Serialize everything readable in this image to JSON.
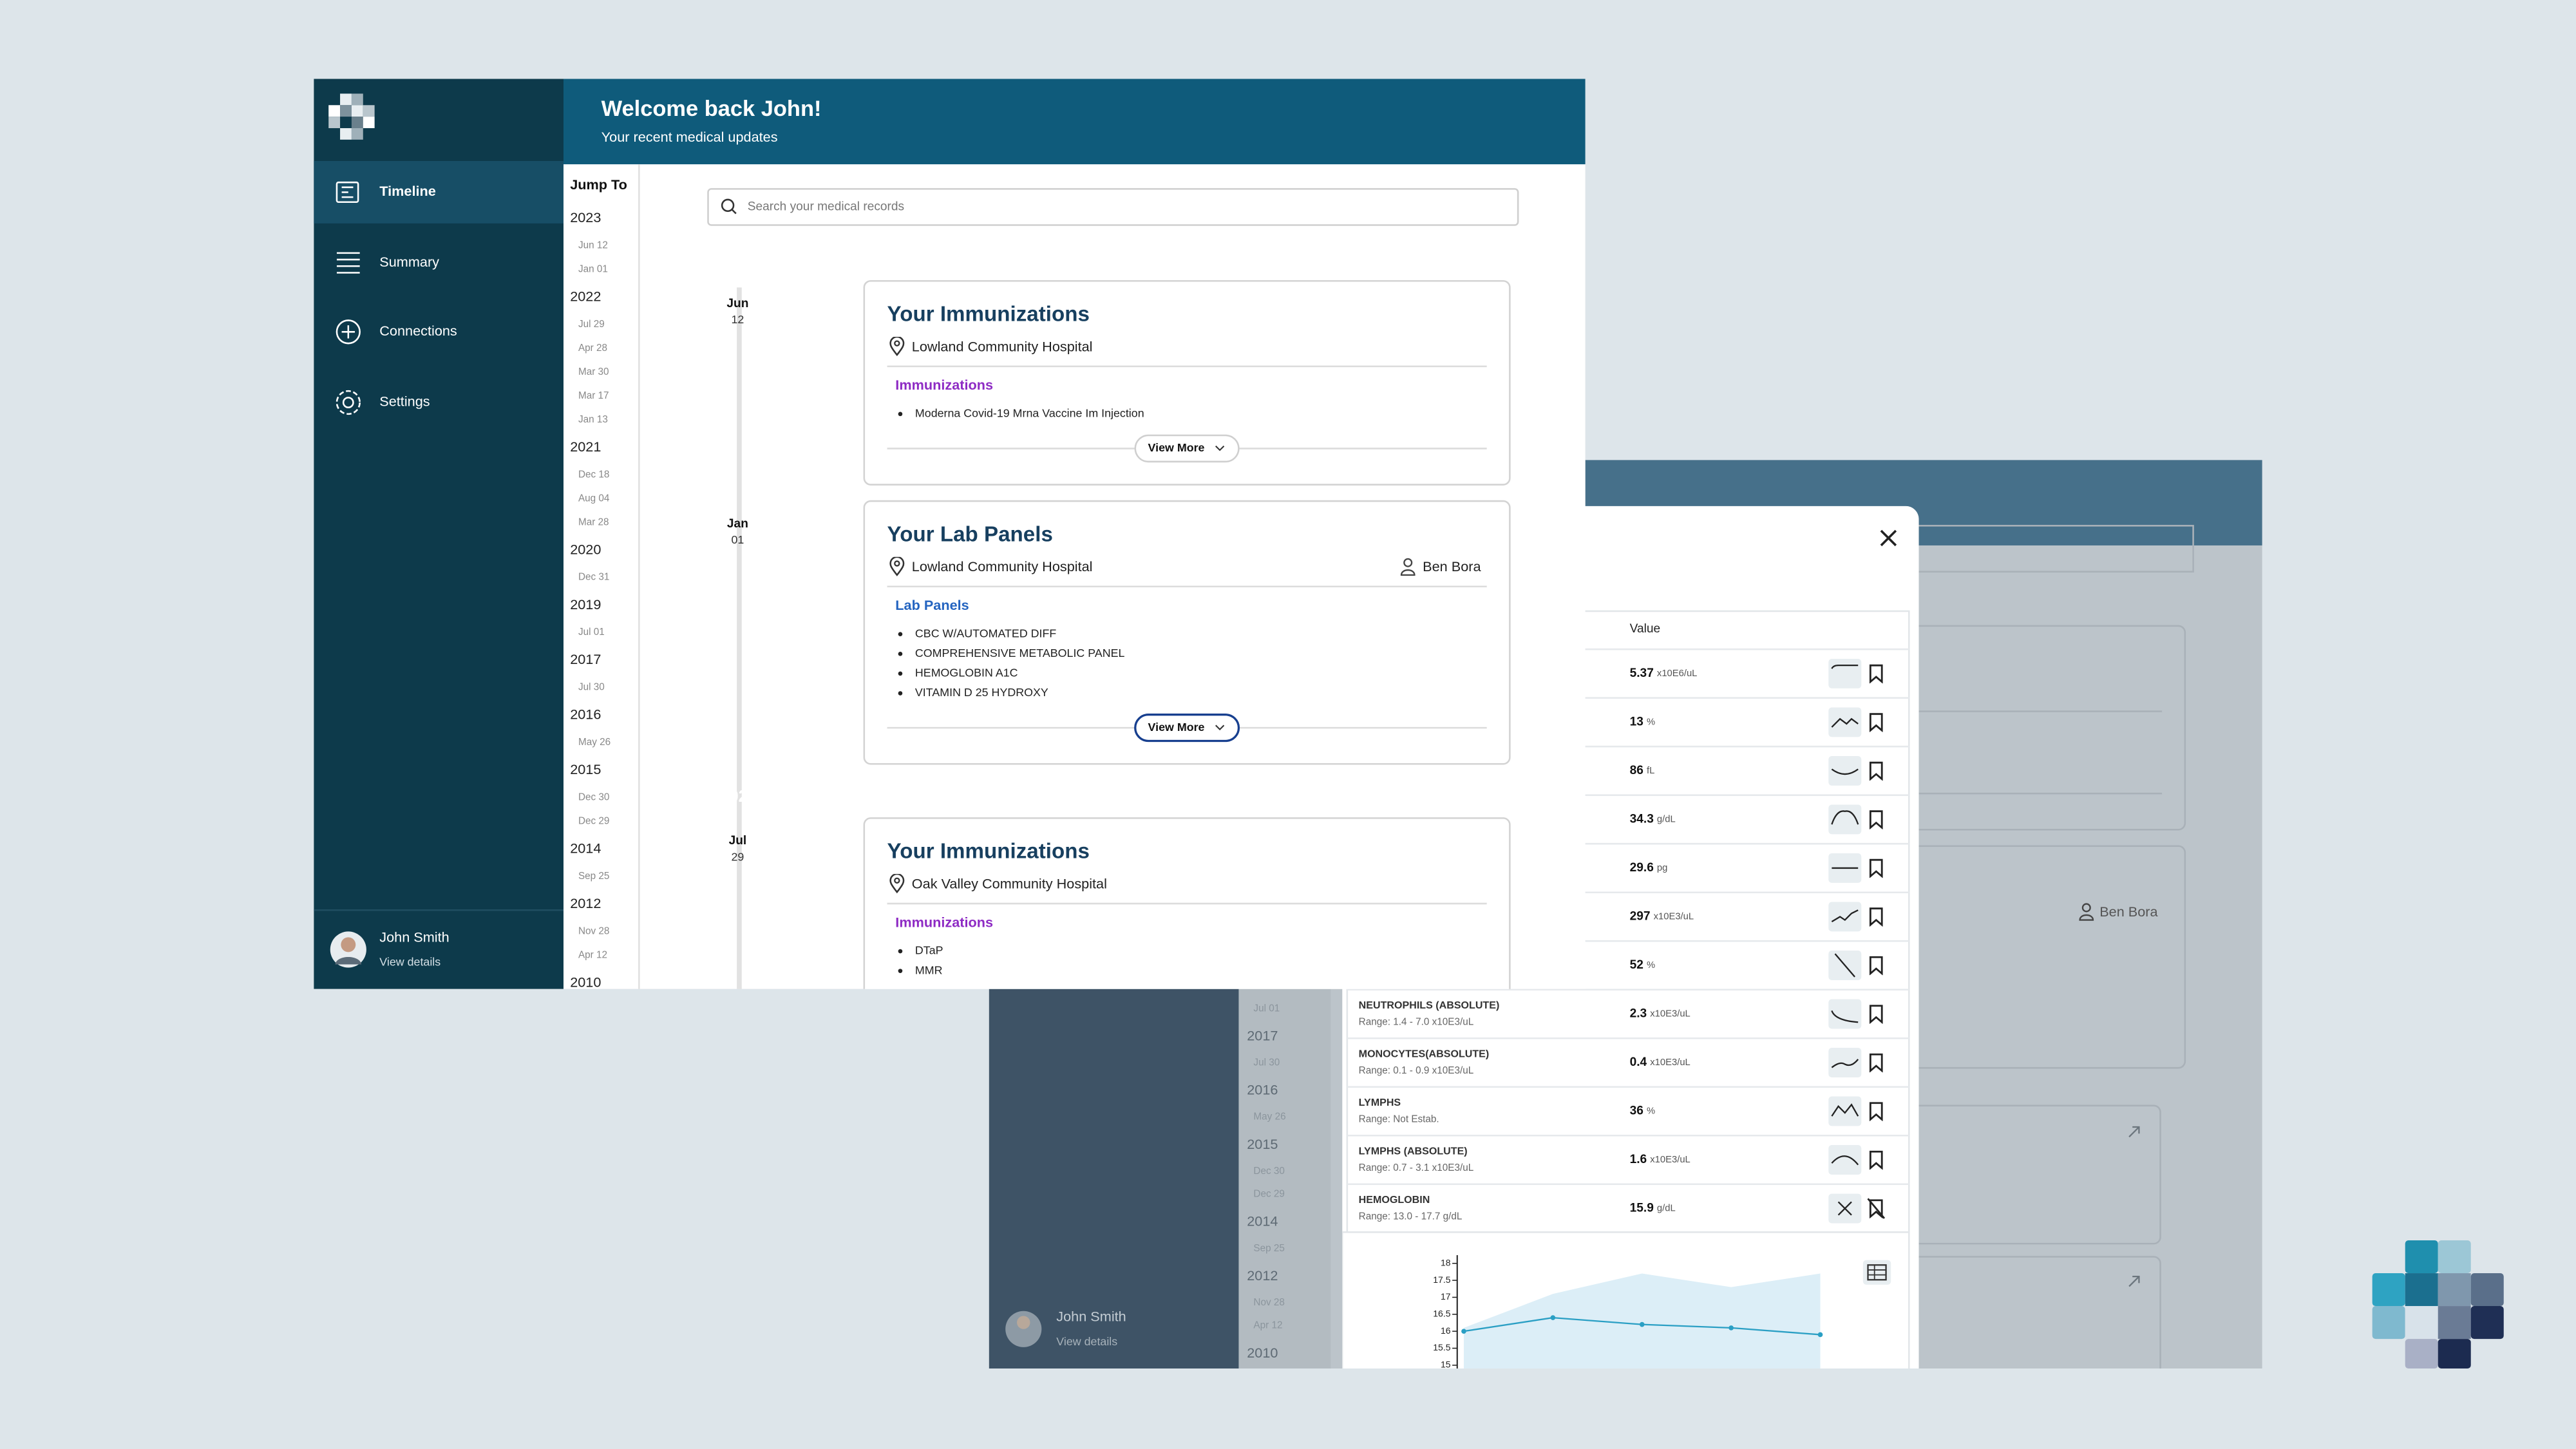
{
  "main_window": {
    "header": {
      "title": "Welcome back John!",
      "subtitle": "Your recent medical updates"
    },
    "nav": [
      "Timeline",
      "Summary",
      "Connections",
      "Settings"
    ],
    "user": {
      "name": "John Smith",
      "link": "View details"
    },
    "jump_to": {
      "label": "Jump To",
      "years": [
        {
          "year": "2023",
          "dates": [
            "Jun 12",
            "Jan 01"
          ]
        },
        {
          "year": "2022",
          "dates": [
            "Jul 29",
            "Apr 28",
            "Mar 30",
            "Mar 17",
            "Jan 13"
          ]
        },
        {
          "year": "2021",
          "dates": [
            "Dec 18",
            "Aug 04",
            "Mar 28"
          ]
        },
        {
          "year": "2020",
          "dates": [
            "Dec 31"
          ]
        },
        {
          "year": "2019",
          "dates": [
            "Jul 01"
          ]
        },
        {
          "year": "2017",
          "dates": [
            "Jul 30"
          ]
        },
        {
          "year": "2016",
          "dates": [
            "May 26"
          ]
        },
        {
          "year": "2015",
          "dates": [
            "Dec 30",
            "Dec 29"
          ]
        },
        {
          "year": "2014",
          "dates": [
            "Sep 25"
          ]
        },
        {
          "year": "2012",
          "dates": [
            "Nov 28",
            "Apr 12"
          ]
        },
        {
          "year": "2010",
          "dates": []
        }
      ]
    },
    "search_placeholder": "Search your medical records",
    "timeline": [
      {
        "year": "2023",
        "entries": [
          {
            "month": "Jun",
            "day": "12",
            "title": "Your Immunizations",
            "location": "Lowland Community Hospital",
            "category": "Immunizations",
            "color": "#8e2bc4",
            "items": [
              "Moderna Covid-19 Mrna Vaccine Im Injection"
            ],
            "button": "View More"
          },
          {
            "month": "Jan",
            "day": "01",
            "title": "Your Lab Panels",
            "location": "Lowland Community Hospital",
            "provider": "Ben Bora",
            "category": "Lab Panels",
            "color": "#2464c0",
            "items": [
              "CBC W/AUTOMATED DIFF",
              "COMPREHENSIVE METABOLIC PANEL",
              "HEMOGLOBIN A1C",
              "VITAMIN D 25 HYDROXY"
            ],
            "button": "View More"
          }
        ]
      },
      {
        "year": "2022",
        "entries": [
          {
            "month": "Jul",
            "day": "29",
            "title": "Your Immunizations",
            "location": "Oak Valley Community Hospital",
            "category": "Immunizations",
            "color": "#8e2bc4",
            "items": [
              "DTaP",
              "MMR"
            ]
          }
        ]
      }
    ]
  },
  "background_window": {
    "jump_to": {
      "leading_dates": [
        "Jul 01"
      ],
      "years": [
        {
          "year": "2017",
          "dates": [
            "Jul 30"
          ]
        },
        {
          "year": "2016",
          "dates": [
            "May 26"
          ]
        },
        {
          "year": "2015",
          "dates": [
            "Dec 30",
            "Dec 29"
          ]
        },
        {
          "year": "2014",
          "dates": [
            "Sep 25"
          ]
        },
        {
          "year": "2012",
          "dates": [
            "Nov 28",
            "Apr 12"
          ]
        },
        {
          "year": "2010",
          "dates": []
        }
      ]
    },
    "user": {
      "name": "John Smith",
      "link": "View details"
    },
    "provider": "Ben Bora"
  },
  "modal": {
    "column": "Value",
    "rows": [
      {
        "value": 5.37,
        "unit": "x10E6/uL"
      },
      {
        "value": 13,
        "unit": "%"
      },
      {
        "value": 86,
        "unit": "fL"
      },
      {
        "value": 34.3,
        "unit": "g/dL"
      },
      {
        "value": 29.6,
        "unit": "pg"
      },
      {
        "value": 297,
        "unit": "x10E3/uL"
      },
      {
        "value": 52,
        "unit": "%"
      },
      {
        "name": "NEUTROPHILS (ABSOLUTE)",
        "range": "Range: 1.4 - 7.0 x10E3/uL",
        "value": 2.3,
        "unit": "x10E3/uL"
      },
      {
        "name": "MONOCYTES(ABSOLUTE)",
        "range": "Range: 0.1 - 0.9 x10E3/uL",
        "value": 0.4,
        "unit": "x10E3/uL"
      },
      {
        "name": "LYMPHS",
        "range": "Range: Not Estab.",
        "value": 36,
        "unit": "%"
      },
      {
        "name": "LYMPHS (ABSOLUTE)",
        "range": "Range: 0.7 - 3.1 x10E3/uL",
        "value": 1.6,
        "unit": "x10E3/uL"
      },
      {
        "name": "HEMOGLOBIN",
        "range": "Range: 13.0 - 17.7 g/dL",
        "value": 15.9,
        "unit": "g/dL"
      }
    ],
    "chart": {
      "type": "line",
      "values": [
        16,
        16.4,
        16.2,
        16.1,
        15.9
      ],
      "range_upper": [
        16.1,
        17.1,
        17.7,
        17.3,
        17.7
      ],
      "color": "#2a9fc4",
      "band_color": "#dcEEf7",
      "ylim": [
        15,
        18
      ],
      "yticks": [
        15,
        15.5,
        16,
        16.5,
        17,
        17.5,
        18
      ]
    }
  }
}
